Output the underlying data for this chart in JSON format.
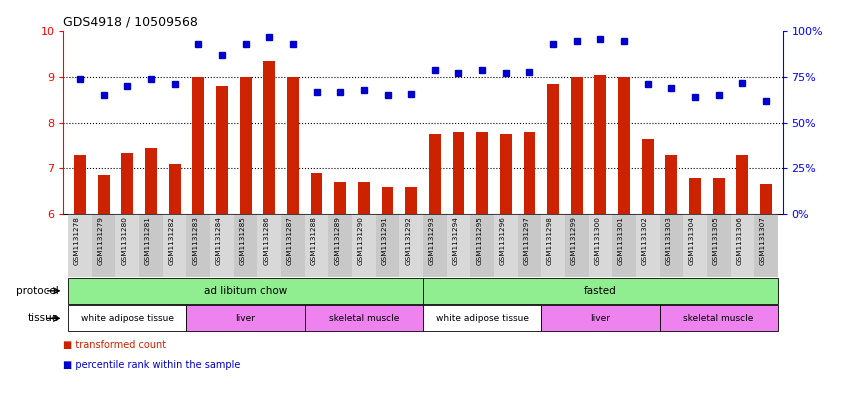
{
  "title": "GDS4918 / 10509568",
  "samples": [
    "GSM1131278",
    "GSM1131279",
    "GSM1131280",
    "GSM1131281",
    "GSM1131282",
    "GSM1131283",
    "GSM1131284",
    "GSM1131285",
    "GSM1131286",
    "GSM1131287",
    "GSM1131288",
    "GSM1131289",
    "GSM1131290",
    "GSM1131291",
    "GSM1131292",
    "GSM1131293",
    "GSM1131294",
    "GSM1131295",
    "GSM1131296",
    "GSM1131297",
    "GSM1131298",
    "GSM1131299",
    "GSM1131300",
    "GSM1131301",
    "GSM1131302",
    "GSM1131303",
    "GSM1131304",
    "GSM1131305",
    "GSM1131306",
    "GSM1131307"
  ],
  "red_values": [
    7.3,
    6.85,
    7.35,
    7.45,
    7.1,
    9.0,
    8.8,
    9.0,
    9.35,
    9.0,
    6.9,
    6.7,
    6.7,
    6.6,
    6.6,
    7.75,
    7.8,
    7.8,
    7.75,
    7.8,
    8.85,
    9.0,
    9.05,
    9.0,
    7.65,
    7.3,
    6.8,
    6.8,
    7.3,
    6.65
  ],
  "blue_values": [
    74,
    65,
    70,
    74,
    71,
    93,
    87,
    93,
    97,
    93,
    67,
    67,
    68,
    65,
    66,
    79,
    77,
    79,
    77,
    78,
    93,
    95,
    96,
    95,
    71,
    69,
    64,
    65,
    72,
    62
  ],
  "ylim_left": [
    6,
    10
  ],
  "ylim_right": [
    0,
    100
  ],
  "yticks_left": [
    6,
    7,
    8,
    9,
    10
  ],
  "yticks_right": [
    0,
    25,
    50,
    75,
    100
  ],
  "ytick_labels_right": [
    "0%",
    "25%",
    "50%",
    "75%",
    "100%"
  ],
  "bar_color": "#CC2200",
  "dot_color": "#0000CC",
  "bg_color": "#FFFFFF",
  "protocol_groups": [
    {
      "label": "ad libitum chow",
      "start": 0,
      "end": 15,
      "color": "#90EE90"
    },
    {
      "label": "fasted",
      "start": 15,
      "end": 30,
      "color": "#90EE90"
    }
  ],
  "tissue_groups": [
    {
      "label": "white adipose tissue",
      "start": 0,
      "end": 5,
      "color": "#FFFFFF"
    },
    {
      "label": "liver",
      "start": 5,
      "end": 10,
      "color": "#EE82EE"
    },
    {
      "label": "skeletal muscle",
      "start": 10,
      "end": 15,
      "color": "#EE82EE"
    },
    {
      "label": "white adipose tissue",
      "start": 15,
      "end": 20,
      "color": "#FFFFFF"
    },
    {
      "label": "liver",
      "start": 20,
      "end": 25,
      "color": "#EE82EE"
    },
    {
      "label": "skeletal muscle",
      "start": 25,
      "end": 30,
      "color": "#EE82EE"
    }
  ],
  "legend_red": "transformed count",
  "legend_blue": "percentile rank within the sample"
}
